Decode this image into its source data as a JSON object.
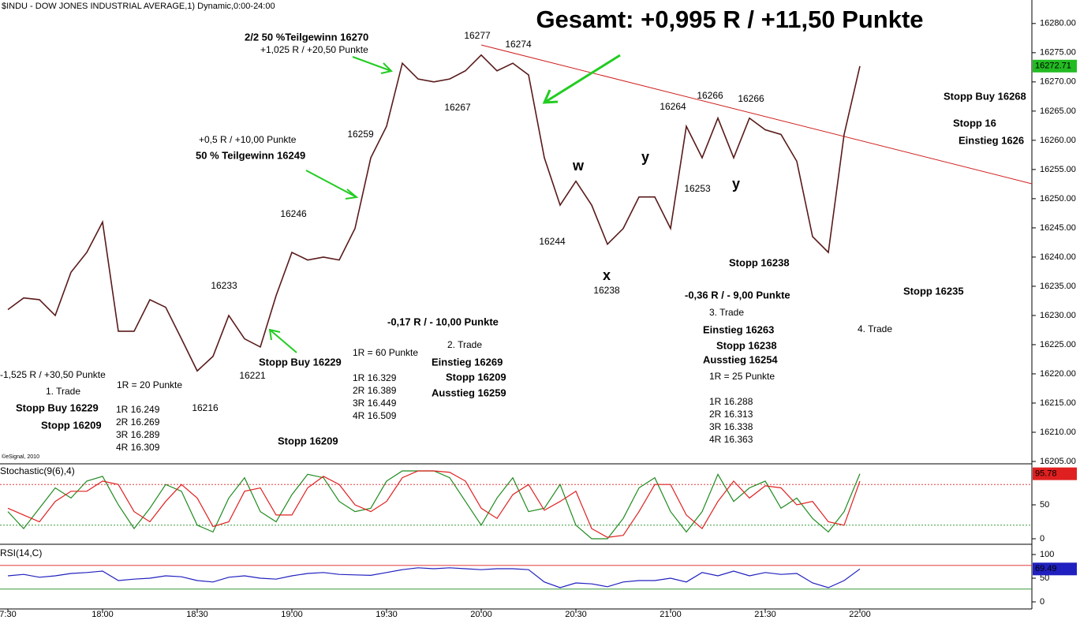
{
  "chart_data": [
    {
      "type": "line",
      "title": "$INDU - DOW JONES INDUSTRIAL AVERAGE,1) Dynamic,0:00-24:00",
      "subtitle": "Gesamt: +0,995 R / +11,50 Punkte",
      "credit": "©eSignal, 2010",
      "categories": [
        "7:30",
        null,
        null,
        null,
        null,
        null,
        "18:00",
        null,
        null,
        null,
        null,
        null,
        "18:30",
        null,
        null,
        null,
        null,
        null,
        "19:00",
        null,
        null,
        null,
        null,
        null,
        "19:30",
        null,
        null,
        null,
        null,
        null,
        "20:00",
        null,
        null,
        null,
        null,
        null,
        "20:30",
        null,
        null,
        null,
        null,
        null,
        "21:00",
        null,
        null,
        null,
        null,
        null,
        "21:30",
        null,
        null,
        null,
        null,
        null,
        "22:00"
      ],
      "series": [
        {
          "name": "$INDU",
          "color": "#5a1a1a",
          "values": [
            16231,
            16233,
            16232.7,
            16230,
            16237.4,
            16240.8,
            16246,
            16227.3,
            16227.3,
            16232.7,
            16231.4,
            16226,
            16220.5,
            16223,
            16230,
            16226,
            16224.6,
            16233.4,
            16240.8,
            16239.5,
            16240,
            16239.5,
            16244.9,
            16257,
            16262.4,
            16273.2,
            16270.5,
            16270,
            16270.5,
            16271.9,
            16274.6,
            16271.9,
            16273.2,
            16271.2,
            16257,
            16248.9,
            16253,
            16248.9,
            16242.2,
            16244.9,
            16250.3,
            16250.3,
            16244.9,
            16262.4,
            16257,
            16263.8,
            16257,
            16263.8,
            16261.8,
            16261,
            16256.4,
            16243.5,
            16240.8,
            16261,
            16272.71
          ]
        }
      ],
      "last_color": "#22bb22",
      "ylim": [
        16205,
        16282
      ],
      "yticks": [
        {
          "value": 16205,
          "label": "16205.00"
        },
        {
          "value": 16210,
          "label": "16210.00"
        },
        {
          "value": 16215,
          "label": "16215.00"
        },
        {
          "value": 16220,
          "label": "16220.00"
        },
        {
          "value": 16225,
          "label": "16225.00"
        },
        {
          "value": 16230,
          "label": "16230.00"
        },
        {
          "value": 16235,
          "label": "16235.00"
        },
        {
          "value": 16240,
          "label": "16240.00"
        },
        {
          "value": 16245,
          "label": "16245.00"
        },
        {
          "value": 16250,
          "label": "16250.00"
        },
        {
          "value": 16255,
          "label": "16255.00"
        },
        {
          "value": 16260,
          "label": "16260.00"
        },
        {
          "value": 16265,
          "label": "16265.00"
        },
        {
          "value": 16270,
          "label": "16270.00"
        },
        {
          "value": 16275,
          "label": "16275.00"
        },
        {
          "value": 16280,
          "label": "16280.00"
        }
      ],
      "annotations": [
        {
          "text": "2/2 50 %Teilgewinn 16270",
          "color": "#1f8a1f"
        },
        {
          "text": "+1,025 R / +20,50 Punkte",
          "color": "#000000"
        },
        {
          "text": "16277",
          "color": "#000000"
        },
        {
          "text": "16274",
          "color": "#000000"
        },
        {
          "text": "16267",
          "color": "#000000"
        },
        {
          "text": "16259",
          "color": "#000000"
        },
        {
          "text": "+0,5 R / +10,00 Punkte",
          "color": "#000000"
        },
        {
          "text": "50 % Teilgewinn 16249",
          "color": "#1f8a1f"
        },
        {
          "text": "16246",
          "color": "#000000"
        },
        {
          "text": "16233",
          "color": "#000000"
        },
        {
          "text": "Stopp Buy 16229",
          "color": "#1f8a1f"
        },
        {
          "text": "16221",
          "color": "#000000"
        },
        {
          "text": "16216",
          "color": "#000000"
        },
        {
          "text": "-1,525 R / +30,50 Punkte",
          "color": "#000000"
        },
        {
          "text": "1. Trade",
          "color": "#000000"
        },
        {
          "text": "Stopp Buy 16229",
          "color": "#1f8a1f"
        },
        {
          "text": "Stopp 16209",
          "color": "#1f8a1f"
        },
        {
          "text": "1R = 20 Punkte",
          "color": "#000000"
        },
        {
          "text": "1R 16.249",
          "color": "#000000"
        },
        {
          "text": "2R 16.269",
          "color": "#000000"
        },
        {
          "text": "3R 16.289",
          "color": "#000000"
        },
        {
          "text": "4R 16.309",
          "color": "#000000"
        },
        {
          "text": "Stopp 16209",
          "color": "#1f8a1f"
        },
        {
          "text": "1R = 60 Punkte",
          "color": "#000000"
        },
        {
          "text": "1R 16.329",
          "color": "#000000"
        },
        {
          "text": "2R 16.389",
          "color": "#000000"
        },
        {
          "text": "3R 16.449",
          "color": "#000000"
        },
        {
          "text": "4R 16.509",
          "color": "#000000"
        },
        {
          "text": "-0,17 R / - 10,00 Punkte",
          "color": "#000000"
        },
        {
          "text": "2. Trade",
          "color": "#000000"
        },
        {
          "text": "Einstieg 16269",
          "color": "#1f8a1f"
        },
        {
          "text": "Stopp 16209",
          "color": "#1f8a1f"
        },
        {
          "text": "Ausstieg 16259",
          "color": "#1f8a1f"
        },
        {
          "text": "16244",
          "color": "#000000"
        },
        {
          "text": "w",
          "color": "#000000"
        },
        {
          "text": "x",
          "color": "#000000"
        },
        {
          "text": "16238",
          "color": "#000000"
        },
        {
          "text": "y",
          "color": "#000000"
        },
        {
          "text": "16264",
          "color": "#000000"
        },
        {
          "text": "16266",
          "color": "#000000"
        },
        {
          "text": "16266",
          "color": "#000000"
        },
        {
          "text": "16253",
          "color": "#000000"
        },
        {
          "text": "y",
          "color": "#000000"
        },
        {
          "text": "Stopp 16238",
          "color": "#1f8a1f"
        },
        {
          "text": "-0,36 R / - 9,00 Punkte",
          "color": "#000000"
        },
        {
          "text": "3. Trade",
          "color": "#000000"
        },
        {
          "text": "Einstieg 16263",
          "color": "#1f8a1f"
        },
        {
          "text": "Stopp 16238",
          "color": "#1f8a1f"
        },
        {
          "text": "Ausstieg 16254",
          "color": "#1f8a1f"
        },
        {
          "text": "1R = 25 Punkte",
          "color": "#000000"
        },
        {
          "text": "1R 16.288",
          "color": "#000000"
        },
        {
          "text": "2R 16.313",
          "color": "#000000"
        },
        {
          "text": "3R 16.338",
          "color": "#000000"
        },
        {
          "text": "4R 16.363",
          "color": "#000000"
        },
        {
          "text": "Stopp 16235",
          "color": "#1f8a1f"
        },
        {
          "text": "4. Trade",
          "color": "#000000"
        },
        {
          "text": "Stopp Buy 16268",
          "color": "#1f8a1f"
        },
        {
          "text": "Stopp 16",
          "color": "#e02020"
        },
        {
          "text": "Einstieg 1626",
          "color": "#e02020"
        }
      ]
    },
    {
      "type": "line",
      "title": "Stochastic(9(6),4)",
      "title_color": "#1f8a1f",
      "last_color": "#e02020",
      "series": [
        {
          "name": "%K",
          "color": "#1f8a1f",
          "values": [
            40,
            15,
            45,
            75,
            60,
            85,
            92,
            50,
            15,
            45,
            80,
            70,
            20,
            10,
            60,
            90,
            40,
            25,
            65,
            95,
            90,
            55,
            40,
            45,
            85,
            100,
            100,
            100,
            90,
            55,
            20,
            60,
            90,
            40,
            45,
            80,
            20,
            0,
            0,
            30,
            75,
            90,
            40,
            10,
            40,
            95,
            55,
            75,
            85,
            45,
            60,
            30,
            10,
            40,
            95.78
          ]
        },
        {
          "name": "%D",
          "color": "#e02020",
          "values": [
            45,
            35,
            25,
            55,
            70,
            70,
            85,
            80,
            40,
            25,
            55,
            80,
            60,
            18,
            25,
            70,
            75,
            35,
            35,
            75,
            92,
            80,
            50,
            40,
            55,
            90,
            100,
            100,
            98,
            85,
            45,
            30,
            65,
            80,
            42,
            55,
            70,
            15,
            2,
            5,
            40,
            80,
            80,
            35,
            15,
            55,
            85,
            60,
            78,
            75,
            50,
            55,
            25,
            20,
            85
          ]
        }
      ],
      "levels": [
        80,
        20
      ],
      "level_colors": [
        "#e02020",
        "#1f8a1f"
      ],
      "ylim": [
        0,
        100
      ],
      "yticks": [
        0,
        50
      ]
    },
    {
      "type": "line",
      "title": "RSI(14,C)",
      "title_color": "#2020c0",
      "last_color": "#2020c0",
      "series": [
        {
          "name": "RSI",
          "color": "#2020c0",
          "values": [
            55,
            58,
            52,
            55,
            60,
            62,
            65,
            45,
            48,
            50,
            55,
            53,
            45,
            42,
            52,
            55,
            50,
            48,
            55,
            60,
            62,
            58,
            57,
            56,
            62,
            68,
            72,
            70,
            72,
            70,
            68,
            70,
            70,
            68,
            42,
            30,
            40,
            38,
            32,
            42,
            45,
            45,
            50,
            42,
            62,
            55,
            65,
            55,
            62,
            58,
            60,
            40,
            30,
            45,
            69.49
          ]
        }
      ],
      "levels": [
        77,
        27
      ],
      "level_colors": [
        "#e02020",
        "#1f8a1f"
      ],
      "ylim": [
        0,
        100
      ],
      "yticks": [
        0,
        50,
        100
      ]
    }
  ]
}
